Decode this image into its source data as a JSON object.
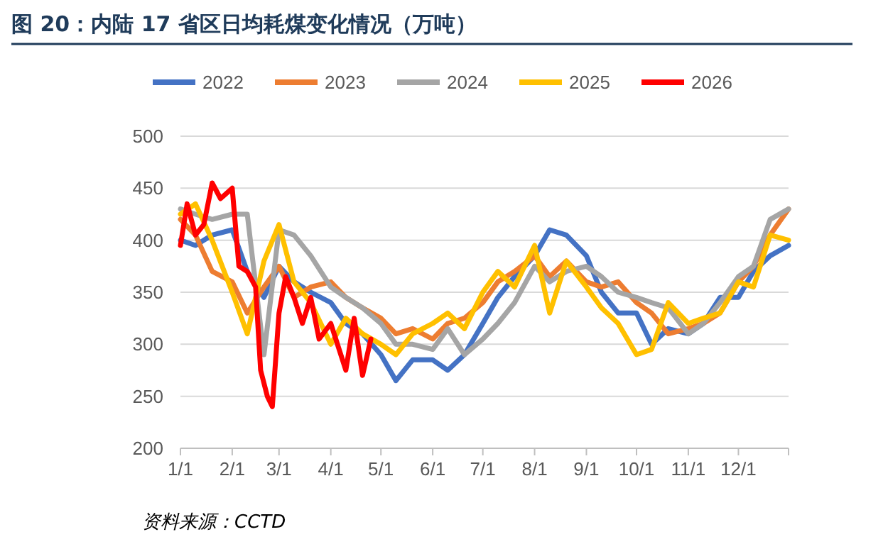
{
  "chart_data": {
    "type": "line",
    "title": "图 20：内陆 17 省区日均耗煤变化情况（万吨）",
    "annotations": [
      "资料来源：CCTD"
    ],
    "x": [
      "--01-01",
      "--01-10",
      "--01-20",
      "--02-01",
      "--02-10",
      "--02-20",
      "--03-01",
      "--03-10",
      "--03-20",
      "--04-01",
      "--04-10",
      "--04-20",
      "--05-01",
      "--05-10",
      "--05-20",
      "--06-01",
      "--06-10",
      "--06-20",
      "--07-01",
      "--07-10",
      "--07-20",
      "--08-01",
      "--08-10",
      "--08-20",
      "--09-01",
      "--09-10",
      "--09-20",
      "--10-01",
      "--10-10",
      "--10-20",
      "--11-01",
      "--11-10",
      "--11-20",
      "--12-01",
      "--12-10",
      "--12-20",
      "--12-31"
    ],
    "xlim": [
      "--01-01",
      "--12-31"
    ],
    "xticks": [
      {
        "value": "--01-01",
        "label": "1/1"
      },
      {
        "value": "--02-01",
        "label": "2/1"
      },
      {
        "value": "--03-01",
        "label": "3/1"
      },
      {
        "value": "--04-01",
        "label": "4/1"
      },
      {
        "value": "--05-01",
        "label": "5/1"
      },
      {
        "value": "--06-01",
        "label": "6/1"
      },
      {
        "value": "--07-01",
        "label": "7/1"
      },
      {
        "value": "--08-01",
        "label": "8/1"
      },
      {
        "value": "--09-01",
        "label": "9/1"
      },
      {
        "value": "--10-01",
        "label": "10/1"
      },
      {
        "value": "--11-01",
        "label": "11/1"
      },
      {
        "value": "--12-01",
        "label": "12/1"
      }
    ],
    "ylim": [
      200,
      500
    ],
    "yticks": [
      200,
      250,
      300,
      350,
      400,
      450,
      500
    ],
    "grid": "y",
    "legend": "top",
    "line_style": "solid",
    "marker": "none",
    "series": [
      {
        "name": "2022",
        "color": "#4472c4",
        "values": [
          400,
          395,
          405,
          410,
          370,
          345,
          375,
          360,
          350,
          340,
          320,
          310,
          290,
          265,
          285,
          285,
          275,
          290,
          320,
          345,
          365,
          385,
          410,
          405,
          385,
          350,
          330,
          330,
          300,
          315,
          310,
          320,
          345,
          345,
          370,
          385,
          395
        ]
      },
      {
        "name": "2023",
        "color": "#ed7d31",
        "values": [
          420,
          405,
          370,
          360,
          330,
          355,
          375,
          345,
          355,
          360,
          345,
          335,
          325,
          310,
          315,
          305,
          320,
          325,
          340,
          360,
          370,
          385,
          365,
          380,
          360,
          355,
          360,
          340,
          330,
          310,
          315,
          320,
          330,
          360,
          375,
          405,
          430
        ]
      },
      {
        "name": "2024",
        "color": "#a5a5a5",
        "values": [
          430,
          425,
          420,
          425,
          425,
          290,
          410,
          405,
          385,
          355,
          345,
          335,
          320,
          300,
          300,
          295,
          315,
          290,
          305,
          320,
          340,
          375,
          360,
          370,
          375,
          365,
          350,
          345,
          340,
          335,
          310,
          320,
          340,
          365,
          375,
          420,
          430
        ]
      },
      {
        "name": "2025",
        "color": "#ffc000",
        "values": [
          425,
          435,
          400,
          350,
          310,
          380,
          415,
          360,
          340,
          300,
          325,
          310,
          300,
          290,
          310,
          320,
          330,
          315,
          350,
          370,
          355,
          395,
          330,
          380,
          355,
          335,
          320,
          290,
          295,
          340,
          320,
          325,
          330,
          360,
          355,
          405,
          400
        ]
      },
      {
        "name": "2026",
        "color": "#ff0000",
        "x": [
          "--01-01",
          "--01-05",
          "--01-10",
          "--01-15",
          "--01-20",
          "--01-25",
          "--02-01",
          "--02-05",
          "--02-10",
          "--02-15",
          "--02-18",
          "--02-22",
          "--02-25",
          "--03-01",
          "--03-05",
          "--03-10",
          "--03-15",
          "--03-20",
          "--03-25",
          "--04-01",
          "--04-05",
          "--04-10",
          "--04-15",
          "--04-20",
          "--04-25"
        ],
        "values": [
          395,
          435,
          405,
          415,
          455,
          440,
          450,
          375,
          370,
          355,
          275,
          250,
          240,
          330,
          365,
          345,
          320,
          345,
          305,
          320,
          300,
          275,
          325,
          270,
          305
        ]
      }
    ]
  }
}
